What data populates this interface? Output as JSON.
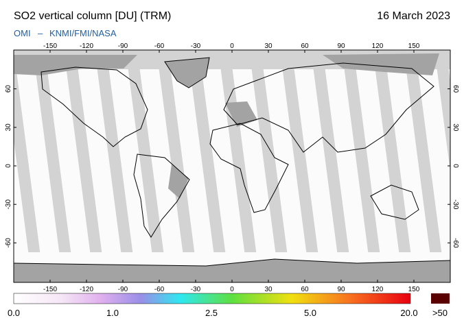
{
  "header": {
    "title": "SO2 vertical column [DU] (TRM)",
    "date": "16 March 2023",
    "instrument": "OMI",
    "separator": "–",
    "source": "KNMI/FMI/NASA"
  },
  "map": {
    "lon_ticks": [
      -150,
      -120,
      -90,
      -60,
      -30,
      0,
      30,
      60,
      90,
      120,
      150
    ],
    "lat_ticks": [
      60,
      30,
      0,
      -30,
      -60
    ]
  },
  "colorbar": {
    "labels": [
      "0.0",
      "1.0",
      "2.5",
      "5.0",
      "20.0"
    ],
    "overflow_label": ">50"
  }
}
